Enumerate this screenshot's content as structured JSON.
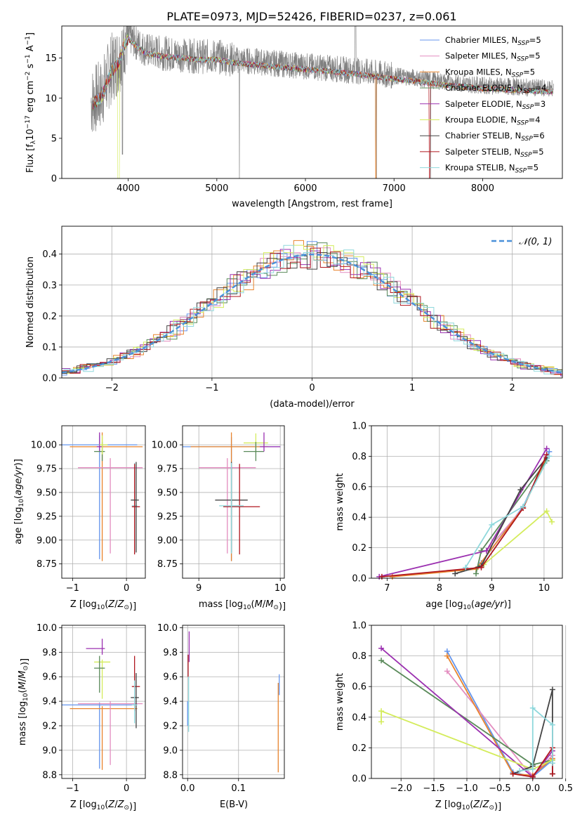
{
  "title": "PLATE=0973, MJD=52426, FIBERID=0237, z=0.061",
  "colors": {
    "Chabrier MILES": "#6495ed",
    "Salpeter MILES": "#e38cbf",
    "Kroupa MILES": "#e8842e",
    "Chabrier ELODIE": "#5a8a5a",
    "Salpeter ELODIE": "#9b30b0",
    "Kroupa ELODIE": "#d4ec5c",
    "Chabrier STELIB": "#444444",
    "Salpeter STELIB": "#b0171f",
    "Kroupa STELIB": "#8fd8dc",
    "data": "#808080"
  },
  "chart_data": [
    {
      "type": "line",
      "xlabel": "wavelength [Angstrom, rest frame]",
      "ylabel": "Flux [f$_\\lambda$10$^{-17}$ erg cm$^{-2}$ s$^{-1}$ A$^{-1}$]",
      "xlim": [
        3250,
        8900
      ],
      "ylim": [
        0,
        19
      ],
      "xticks": [
        "4000",
        "5000",
        "6000",
        "7000",
        "8000"
      ],
      "yticks": [
        "0",
        "5",
        "10",
        "15"
      ],
      "legend_position": "top-right",
      "legend": [
        {
          "base": "Chabrier MILES, N",
          "sub": "SSP",
          "tail": "=5"
        },
        {
          "base": "Salpeter MILES, N",
          "sub": "SSP",
          "tail": "=5"
        },
        {
          "base": "Kroupa MILES, N",
          "sub": "SSP",
          "tail": "=5"
        },
        {
          "base": "Chabrier ELODIE, N",
          "sub": "SSP",
          "tail": "=4"
        },
        {
          "base": "Salpeter ELODIE, N",
          "sub": "SSP",
          "tail": "=3"
        },
        {
          "base": "Kroupa ELODIE, N",
          "sub": "SSP",
          "tail": "=4"
        },
        {
          "base": "Chabrier STELIB, N",
          "sub": "SSP",
          "tail": "=6"
        },
        {
          "base": "Salpeter STELIB, N",
          "sub": "SSP",
          "tail": "=5"
        },
        {
          "base": "Kroupa STELIB, N",
          "sub": "SSP",
          "tail": "=5"
        }
      ],
      "spectrum_profile": {
        "x": [
          3580,
          3700,
          3800,
          3900,
          3950,
          4000,
          4100,
          4200,
          4400,
          4600,
          4800,
          5000,
          5200,
          5400,
          5600,
          5800,
          6000,
          6200,
          6400,
          6600,
          6800,
          7000,
          7200,
          7400,
          7600,
          7800,
          8000,
          8200,
          8400,
          8600,
          8800
        ],
        "y": [
          9.5,
          10.5,
          13.5,
          15,
          17,
          17.8,
          16.8,
          16,
          15.6,
          15.4,
          15.2,
          15.2,
          14.8,
          14.6,
          14.4,
          14.2,
          14.0,
          13.8,
          13.6,
          13.4,
          13.1,
          12.8,
          12.6,
          12.3,
          12.0,
          11.8,
          11.6,
          11.5,
          11.4,
          11.3,
          11.2
        ]
      }
    },
    {
      "type": "line",
      "xlabel": "(data-model)/error",
      "ylabel": "Normed distribution",
      "xlim": [
        -2.5,
        2.5
      ],
      "ylim": [
        0,
        0.49
      ],
      "xticks": [
        "−2",
        "−1",
        "0",
        "1",
        "2"
      ],
      "yticks": [
        "0.0",
        "0.1",
        "0.2",
        "0.3",
        "0.4"
      ],
      "legend": "𝒩(0, 1)",
      "legend_position": "top-right",
      "grid": true
    },
    {
      "type": "scatter",
      "xlabel": "Z [log",
      "ylabel": "age  [log",
      "xlim": [
        -1.2,
        0.35
      ],
      "ylim": [
        8.6,
        10.2
      ],
      "xticks": [
        "−1",
        "0"
      ],
      "yticks": [
        "8.75",
        "9.00",
        "9.25",
        "9.50",
        "9.75",
        "10.00"
      ],
      "grid": true
    },
    {
      "type": "scatter",
      "xlabel": "mass [log",
      "xlim": [
        8.8,
        10.05
      ],
      "ylim": [
        8.6,
        10.2
      ],
      "xticks": [
        "9",
        "10"
      ],
      "yticks": [
        "8.75",
        "9.00",
        "9.25",
        "9.50",
        "9.75",
        "10.00"
      ],
      "grid": true
    },
    {
      "type": "line",
      "xlabel": "age  [log",
      "ylabel": "mass weight",
      "xlim": [
        6.7,
        10.35
      ],
      "ylim": [
        0,
        1
      ],
      "xticks": [
        "7",
        "8",
        "9",
        "10"
      ],
      "yticks": [
        "0.0",
        "0.2",
        "0.4",
        "0.6",
        "0.8",
        "1.0"
      ],
      "grid": true,
      "series": [
        {
          "c": "Chabrier MILES",
          "x": [
            8.8,
            9.6,
            10.1
          ],
          "y": [
            0.1,
            0.47,
            0.83
          ]
        },
        {
          "c": "Salpeter MILES",
          "x": [
            8.9,
            9.6,
            10.05
          ],
          "y": [
            0.18,
            0.46,
            0.8
          ]
        },
        {
          "c": "Kroupa MILES",
          "x": [
            7.1,
            8.7,
            9.6,
            10.05
          ],
          "y": [
            0.01,
            0.06,
            0.46,
            0.79
          ]
        },
        {
          "c": "Chabrier ELODIE",
          "x": [
            8.7,
            8.8,
            10.05
          ],
          "y": [
            0.03,
            0.18,
            0.77
          ]
        },
        {
          "c": "Salpeter ELODIE",
          "x": [
            6.85,
            8.9,
            10.05
          ],
          "y": [
            0.01,
            0.18,
            0.85
          ]
        },
        {
          "c": "Kroupa ELODIE",
          "x": [
            8.85,
            10.05,
            10.15
          ],
          "y": [
            0.09,
            0.44,
            0.37
          ]
        },
        {
          "c": "Chabrier STELIB",
          "x": [
            8.3,
            8.8,
            9.55,
            10.05
          ],
          "y": [
            0.03,
            0.08,
            0.58,
            0.79
          ]
        },
        {
          "c": "Salpeter STELIB",
          "x": [
            6.9,
            8.8,
            9.6,
            10.05
          ],
          "y": [
            0.01,
            0.07,
            0.46,
            0.81
          ]
        },
        {
          "c": "Kroupa STELIB",
          "x": [
            8.5,
            9.0,
            9.6,
            10.1
          ],
          "y": [
            0.07,
            0.35,
            0.47,
            0.8
          ]
        }
      ]
    },
    {
      "type": "scatter",
      "xlabel": "Z [log",
      "ylabel": "mass [log",
      "xlim": [
        -1.2,
        0.35
      ],
      "ylim": [
        8.77,
        10.02
      ],
      "xticks": [
        "−1",
        "0"
      ],
      "yticks": [
        "8.8",
        "9.0",
        "9.2",
        "9.4",
        "9.6",
        "9.8",
        "10.0"
      ],
      "grid": true
    },
    {
      "type": "scatter",
      "xlabel": "E(B-V)",
      "xlim": [
        -0.01,
        0.19
      ],
      "ylim": [
        8.77,
        10.02
      ],
      "xticks": [
        "0.0",
        "0.1"
      ],
      "yticks": [
        "8.8",
        "9.0",
        "9.2",
        "9.4",
        "9.6",
        "9.8",
        "10.0"
      ],
      "grid": true
    },
    {
      "type": "line",
      "xlabel": "Z [log",
      "ylabel": "mass weight",
      "xlim": [
        -2.45,
        0.45
      ],
      "ylim": [
        0,
        1
      ],
      "xticks": [
        "−2.0",
        "−1.5",
        "−1.0",
        "−0.5",
        "0.0",
        "0.5"
      ],
      "yticks": [
        "0.0",
        "0.2",
        "0.4",
        "0.6",
        "0.8",
        "1.0"
      ],
      "grid": true,
      "series": [
        {
          "c": "Chabrier MILES",
          "x": [
            -1.3,
            -0.3,
            0.0,
            0.3
          ],
          "y": [
            0.83,
            0.04,
            0.01,
            0.12
          ]
        },
        {
          "c": "Salpeter MILES",
          "x": [
            -1.3,
            -0.1,
            0.0,
            0.3
          ],
          "y": [
            0.7,
            0.06,
            0.02,
            0.15
          ]
        },
        {
          "c": "Kroupa MILES",
          "x": [
            -1.3,
            -0.3,
            0.0,
            0.3
          ],
          "y": [
            0.8,
            0.03,
            0.02,
            0.13
          ]
        },
        {
          "c": "Chabrier ELODIE",
          "x": [
            -2.3,
            0.0,
            0.3
          ],
          "y": [
            0.77,
            0.09,
            0.12
          ]
        },
        {
          "c": "Salpeter ELODIE",
          "x": [
            -2.3,
            0.0,
            0.3
          ],
          "y": [
            0.85,
            0.01,
            0.18
          ]
        },
        {
          "c": "Kroupa ELODIE",
          "x": [
            -2.3,
            -2.3,
            0.0,
            0.3
          ],
          "y": [
            0.37,
            0.44,
            0.06,
            0.12
          ]
        },
        {
          "c": "Chabrier STELIB",
          "x": [
            -0.3,
            0.0,
            0.3,
            0.3
          ],
          "y": [
            0.03,
            0.08,
            0.58,
            0.03
          ]
        },
        {
          "c": "Salpeter STELIB",
          "x": [
            -0.3,
            0.0,
            0.3,
            0.3
          ],
          "y": [
            0.03,
            0.01,
            0.2,
            0.03
          ]
        },
        {
          "c": "Kroupa STELIB",
          "x": [
            -0.2,
            0.0,
            0.0,
            0.3,
            0.3
          ],
          "y": [
            0.05,
            0.06,
            0.46,
            0.35,
            0.1
          ]
        }
      ]
    }
  ]
}
